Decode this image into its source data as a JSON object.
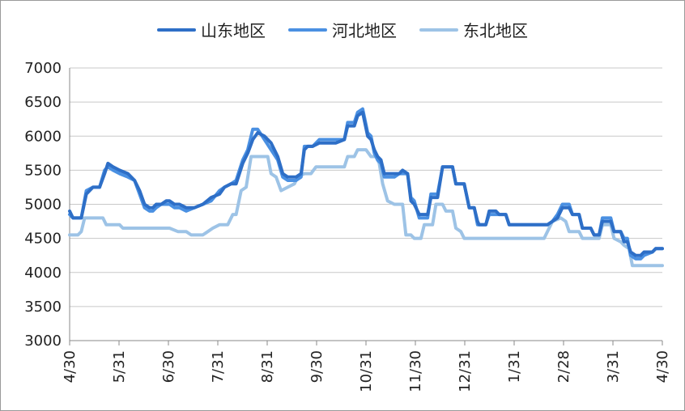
{
  "chart_data": {
    "type": "line",
    "title": "",
    "xlabel": "",
    "ylabel": "",
    "ylim": [
      3000,
      7000
    ],
    "y_ticks": [
      3000,
      3500,
      4000,
      4500,
      5000,
      5500,
      6000,
      6500,
      7000
    ],
    "x_ticks": [
      "4/30",
      "5/31",
      "6/30",
      "7/31",
      "8/31",
      "9/30",
      "10/31",
      "11/30",
      "12/31",
      "1/31",
      "2/28",
      "3/31",
      "4/30"
    ],
    "gridlines": "horizontal",
    "legend_position": "top",
    "series": [
      {
        "name": "山东地区",
        "color": "#2E6FC7",
        "points": [
          [
            0,
            4900
          ],
          [
            2,
            4800
          ],
          [
            7,
            4800
          ],
          [
            10,
            5150
          ],
          [
            14,
            5250
          ],
          [
            18,
            5250
          ],
          [
            21,
            5450
          ],
          [
            23,
            5600
          ],
          [
            26,
            5550
          ],
          [
            30,
            5500
          ],
          [
            35,
            5450
          ],
          [
            39,
            5350
          ],
          [
            42,
            5200
          ],
          [
            45,
            5000
          ],
          [
            48,
            4950
          ],
          [
            50,
            4950
          ],
          [
            52,
            5000
          ],
          [
            55,
            5000
          ],
          [
            58,
            5050
          ],
          [
            60,
            5050
          ],
          [
            63,
            5000
          ],
          [
            66,
            5000
          ],
          [
            70,
            4950
          ],
          [
            75,
            4950
          ],
          [
            80,
            5000
          ],
          [
            85,
            5100
          ],
          [
            90,
            5150
          ],
          [
            93,
            5250
          ],
          [
            97,
            5300
          ],
          [
            100,
            5300
          ],
          [
            104,
            5600
          ],
          [
            107,
            5750
          ],
          [
            110,
            5950
          ],
          [
            113,
            6050
          ],
          [
            117,
            6000
          ],
          [
            121,
            5900
          ],
          [
            125,
            5700
          ],
          [
            128,
            5450
          ],
          [
            131,
            5400
          ],
          [
            136,
            5400
          ],
          [
            139,
            5450
          ],
          [
            141,
            5800
          ],
          [
            143,
            5850
          ],
          [
            146,
            5850
          ],
          [
            150,
            5900
          ],
          [
            156,
            5900
          ],
          [
            160,
            5900
          ],
          [
            165,
            5950
          ],
          [
            167,
            6150
          ],
          [
            171,
            6150
          ],
          [
            173,
            6300
          ],
          [
            176,
            6350
          ],
          [
            179,
            6000
          ],
          [
            181,
            5950
          ],
          [
            183,
            5800
          ],
          [
            185,
            5700
          ],
          [
            187,
            5650
          ],
          [
            189,
            5450
          ],
          [
            195,
            5450
          ],
          [
            198,
            5450
          ],
          [
            200,
            5500
          ],
          [
            203,
            5450
          ],
          [
            205,
            5050
          ],
          [
            207,
            5000
          ],
          [
            210,
            4850
          ],
          [
            215,
            4850
          ],
          [
            217,
            5100
          ],
          [
            221,
            5100
          ],
          [
            224,
            5550
          ],
          [
            230,
            5550
          ],
          [
            232,
            5300
          ],
          [
            237,
            5300
          ],
          [
            240,
            4950
          ],
          [
            243,
            4950
          ],
          [
            245,
            4750
          ],
          [
            246,
            4700
          ],
          [
            250,
            4700
          ],
          [
            252,
            4900
          ],
          [
            256,
            4900
          ],
          [
            258,
            4850
          ],
          [
            262,
            4850
          ],
          [
            264,
            4700
          ],
          [
            287,
            4700
          ],
          [
            290,
            4750
          ],
          [
            293,
            4800
          ],
          [
            296,
            4950
          ],
          [
            300,
            4950
          ],
          [
            302,
            4850
          ],
          [
            306,
            4850
          ],
          [
            308,
            4650
          ],
          [
            313,
            4650
          ],
          [
            315,
            4550
          ],
          [
            318,
            4550
          ],
          [
            320,
            4750
          ],
          [
            325,
            4750
          ],
          [
            327,
            4600
          ],
          [
            331,
            4600
          ],
          [
            333,
            4450
          ],
          [
            335,
            4450
          ],
          [
            337,
            4300
          ],
          [
            340,
            4250
          ],
          [
            343,
            4250
          ],
          [
            345,
            4300
          ],
          [
            350,
            4300
          ],
          [
            352,
            4350
          ],
          [
            356,
            4350
          ]
        ]
      },
      {
        "name": "河北地区",
        "color": "#4A90E2",
        "points": [
          [
            0,
            4850
          ],
          [
            2,
            4800
          ],
          [
            7,
            4800
          ],
          [
            10,
            5200
          ],
          [
            14,
            5250
          ],
          [
            18,
            5250
          ],
          [
            21,
            5500
          ],
          [
            23,
            5550
          ],
          [
            26,
            5500
          ],
          [
            30,
            5450
          ],
          [
            35,
            5400
          ],
          [
            39,
            5350
          ],
          [
            42,
            5150
          ],
          [
            45,
            4950
          ],
          [
            48,
            4900
          ],
          [
            50,
            4900
          ],
          [
            52,
            4950
          ],
          [
            55,
            5000
          ],
          [
            58,
            5000
          ],
          [
            60,
            5000
          ],
          [
            63,
            4950
          ],
          [
            66,
            4950
          ],
          [
            70,
            4900
          ],
          [
            75,
            4950
          ],
          [
            80,
            5000
          ],
          [
            85,
            5050
          ],
          [
            90,
            5200
          ],
          [
            93,
            5250
          ],
          [
            97,
            5300
          ],
          [
            100,
            5350
          ],
          [
            104,
            5650
          ],
          [
            107,
            5800
          ],
          [
            110,
            6100
          ],
          [
            113,
            6100
          ],
          [
            117,
            5950
          ],
          [
            121,
            5800
          ],
          [
            125,
            5650
          ],
          [
            128,
            5400
          ],
          [
            131,
            5350
          ],
          [
            136,
            5350
          ],
          [
            139,
            5400
          ],
          [
            141,
            5850
          ],
          [
            143,
            5850
          ],
          [
            146,
            5850
          ],
          [
            150,
            5950
          ],
          [
            156,
            5950
          ],
          [
            160,
            5950
          ],
          [
            165,
            5950
          ],
          [
            167,
            6200
          ],
          [
            171,
            6200
          ],
          [
            173,
            6350
          ],
          [
            176,
            6400
          ],
          [
            179,
            6050
          ],
          [
            181,
            6000
          ],
          [
            183,
            5750
          ],
          [
            185,
            5650
          ],
          [
            187,
            5600
          ],
          [
            189,
            5400
          ],
          [
            195,
            5400
          ],
          [
            198,
            5450
          ],
          [
            200,
            5450
          ],
          [
            203,
            5450
          ],
          [
            205,
            5100
          ],
          [
            207,
            5050
          ],
          [
            210,
            4800
          ],
          [
            215,
            4800
          ],
          [
            217,
            5150
          ],
          [
            221,
            5150
          ],
          [
            224,
            5550
          ],
          [
            230,
            5550
          ],
          [
            232,
            5300
          ],
          [
            237,
            5300
          ],
          [
            240,
            4950
          ],
          [
            243,
            4950
          ],
          [
            245,
            4700
          ],
          [
            246,
            4700
          ],
          [
            250,
            4700
          ],
          [
            252,
            4850
          ],
          [
            256,
            4850
          ],
          [
            258,
            4850
          ],
          [
            262,
            4850
          ],
          [
            264,
            4700
          ],
          [
            287,
            4700
          ],
          [
            290,
            4750
          ],
          [
            293,
            4850
          ],
          [
            296,
            5000
          ],
          [
            300,
            5000
          ],
          [
            302,
            4850
          ],
          [
            306,
            4850
          ],
          [
            308,
            4650
          ],
          [
            313,
            4650
          ],
          [
            315,
            4550
          ],
          [
            318,
            4550
          ],
          [
            320,
            4800
          ],
          [
            325,
            4800
          ],
          [
            327,
            4600
          ],
          [
            331,
            4600
          ],
          [
            333,
            4500
          ],
          [
            335,
            4500
          ],
          [
            337,
            4250
          ],
          [
            340,
            4200
          ],
          [
            343,
            4200
          ],
          [
            345,
            4250
          ],
          [
            350,
            4300
          ],
          [
            352,
            4350
          ],
          [
            356,
            4350
          ]
        ]
      },
      {
        "name": "东北地区",
        "color": "#9DC3E6",
        "points": [
          [
            0,
            4550
          ],
          [
            5,
            4550
          ],
          [
            7,
            4600
          ],
          [
            9,
            4800
          ],
          [
            13,
            4800
          ],
          [
            20,
            4800
          ],
          [
            22,
            4700
          ],
          [
            30,
            4700
          ],
          [
            32,
            4650
          ],
          [
            40,
            4650
          ],
          [
            50,
            4650
          ],
          [
            60,
            4650
          ],
          [
            65,
            4600
          ],
          [
            70,
            4600
          ],
          [
            73,
            4550
          ],
          [
            80,
            4550
          ],
          [
            83,
            4600
          ],
          [
            86,
            4650
          ],
          [
            90,
            4700
          ],
          [
            95,
            4700
          ],
          [
            98,
            4850
          ],
          [
            100,
            4850
          ],
          [
            103,
            5200
          ],
          [
            106,
            5250
          ],
          [
            109,
            5700
          ],
          [
            115,
            5700
          ],
          [
            119,
            5700
          ],
          [
            121,
            5450
          ],
          [
            124,
            5400
          ],
          [
            127,
            5200
          ],
          [
            131,
            5250
          ],
          [
            135,
            5300
          ],
          [
            137,
            5400
          ],
          [
            141,
            5450
          ],
          [
            145,
            5450
          ],
          [
            148,
            5550
          ],
          [
            155,
            5550
          ],
          [
            160,
            5550
          ],
          [
            165,
            5550
          ],
          [
            167,
            5700
          ],
          [
            171,
            5700
          ],
          [
            173,
            5800
          ],
          [
            178,
            5800
          ],
          [
            181,
            5700
          ],
          [
            184,
            5700
          ],
          [
            186,
            5600
          ],
          [
            188,
            5300
          ],
          [
            191,
            5050
          ],
          [
            195,
            5000
          ],
          [
            200,
            5000
          ],
          [
            202,
            4550
          ],
          [
            205,
            4550
          ],
          [
            207,
            4500
          ],
          [
            211,
            4500
          ],
          [
            213,
            4700
          ],
          [
            218,
            4700
          ],
          [
            220,
            5000
          ],
          [
            224,
            5000
          ],
          [
            226,
            4900
          ],
          [
            230,
            4900
          ],
          [
            232,
            4650
          ],
          [
            235,
            4600
          ],
          [
            237,
            4500
          ],
          [
            250,
            4500
          ],
          [
            260,
            4500
          ],
          [
            270,
            4500
          ],
          [
            280,
            4500
          ],
          [
            285,
            4500
          ],
          [
            290,
            4750
          ],
          [
            295,
            4800
          ],
          [
            298,
            4750
          ],
          [
            300,
            4600
          ],
          [
            306,
            4600
          ],
          [
            308,
            4500
          ],
          [
            313,
            4500
          ],
          [
            315,
            4500
          ],
          [
            318,
            4500
          ],
          [
            320,
            4700
          ],
          [
            325,
            4700
          ],
          [
            327,
            4500
          ],
          [
            331,
            4450
          ],
          [
            333,
            4400
          ],
          [
            336,
            4350
          ],
          [
            338,
            4100
          ],
          [
            345,
            4100
          ],
          [
            350,
            4100
          ],
          [
            356,
            4100
          ]
        ]
      }
    ]
  }
}
